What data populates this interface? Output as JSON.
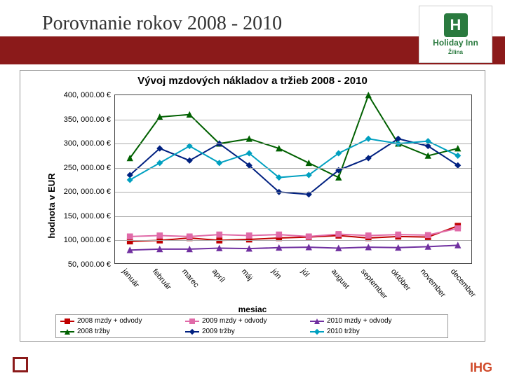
{
  "header": {
    "title": "Porovnanie rokov 2008 - 2010",
    "logo_letter": "H",
    "logo_text": "Holiday Inn",
    "logo_sub": "Žilina"
  },
  "chart": {
    "title": "Vývoj mzdových nákladov a tržieb 2008 - 2010",
    "ylabel": "hodnota v EUR",
    "xlabel": "mesiac",
    "type": "line",
    "ylim": [
      50000,
      400000
    ],
    "ytick_step": 50000,
    "ytick_labels": [
      "50, 000.00 €",
      "100, 000.00 €",
      "150, 000.00 €",
      "200, 000.00 €",
      "250, 000.00 €",
      "300, 000.00 €",
      "350, 000.00 €",
      "400, 000.00 €"
    ],
    "categories": [
      "január",
      "február",
      "marec",
      "apríl",
      "máj",
      "jún",
      "júl",
      "august",
      "september",
      "október",
      "november",
      "december"
    ],
    "background_color": "#ffffff",
    "grid_color": "#aaaaaa",
    "axis_color": "#444444",
    "line_width": 2,
    "marker_size": 5,
    "series": [
      {
        "name": "2008 mzdy + odvody",
        "color": "#c00000",
        "marker": "square",
        "values": [
          98000,
          100000,
          105000,
          100000,
          102000,
          105000,
          107000,
          110000,
          105000,
          108000,
          107000,
          130000
        ]
      },
      {
        "name": "2009 mzdy + odvody",
        "color": "#e06aa8",
        "marker": "square",
        "values": [
          108000,
          110000,
          108000,
          112000,
          110000,
          112000,
          108000,
          113000,
          110000,
          112000,
          111000,
          125000
        ]
      },
      {
        "name": "2010 mzdy + odvody",
        "color": "#7030a0",
        "marker": "triangle",
        "values": [
          80000,
          82000,
          82000,
          84000,
          83000,
          85000,
          86000,
          84000,
          86000,
          85000,
          87000,
          90000
        ]
      },
      {
        "name": "2008 tržby",
        "color": "#006000",
        "marker": "triangle",
        "values": [
          270000,
          355000,
          360000,
          300000,
          310000,
          290000,
          260000,
          230000,
          400000,
          300000,
          275000,
          290000
        ]
      },
      {
        "name": "2009 tržby",
        "color": "#002080",
        "marker": "diamond",
        "values": [
          235000,
          290000,
          265000,
          300000,
          255000,
          200000,
          195000,
          245000,
          270000,
          310000,
          295000,
          255000
        ]
      },
      {
        "name": "2010 tržby",
        "color": "#00a0c0",
        "marker": "diamond",
        "values": [
          225000,
          260000,
          295000,
          260000,
          280000,
          230000,
          235000,
          280000,
          310000,
          300000,
          305000,
          275000
        ]
      }
    ]
  },
  "footer": {
    "right_logo": "IHG"
  }
}
